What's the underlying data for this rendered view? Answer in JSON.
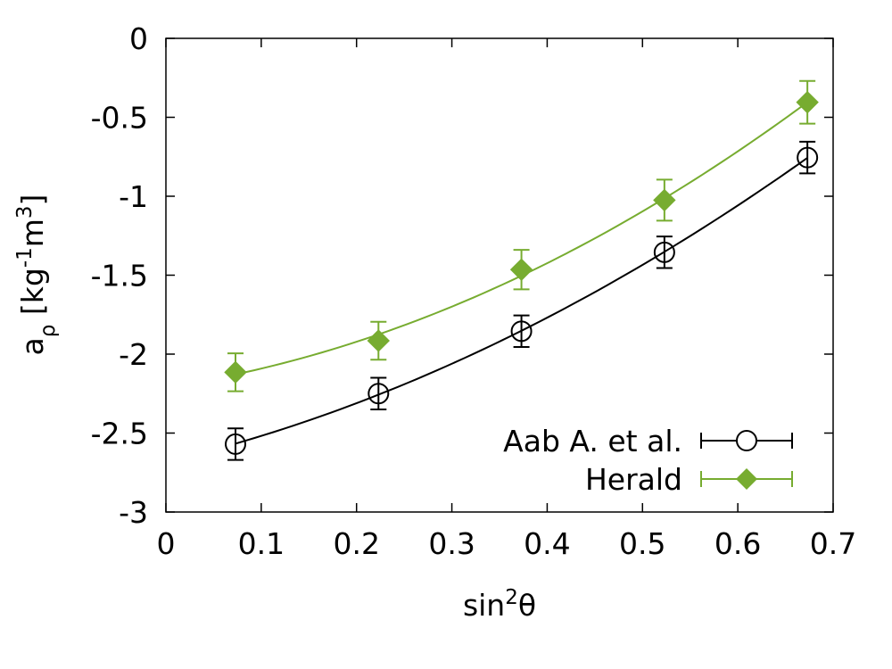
{
  "chart_data": {
    "type": "scatter",
    "title": "",
    "xlabel": {
      "base": "sin",
      "sup": "2",
      "tail": "θ"
    },
    "ylabel": {
      "base": "a",
      "sub": "ρ",
      "unit_open": " [kg",
      "sup1": "-1",
      "unit_mid": "m",
      "sup2": "3",
      "unit_close": "]"
    },
    "xlim": [
      0,
      0.7
    ],
    "ylim": [
      -3,
      0
    ],
    "xticks": [
      0,
      0.1,
      0.2,
      0.3,
      0.4,
      0.5,
      0.6,
      0.7
    ],
    "xtick_labels": [
      "0",
      "0.1",
      "0.2",
      "0.3",
      "0.4",
      "0.5",
      "0.6",
      "0.7"
    ],
    "yticks": [
      0,
      -0.5,
      -1,
      -1.5,
      -2,
      -2.5,
      -3
    ],
    "ytick_labels": [
      "0",
      "-0.5",
      "-1",
      "-1.5",
      "-2",
      "-2.5",
      "-3"
    ],
    "grid": false,
    "legend_position": "bottom-right",
    "series": [
      {
        "name": "Aab A. et al.",
        "marker": "open-circle",
        "color": "#000000",
        "x": [
          0.073,
          0.223,
          0.373,
          0.523,
          0.673
        ],
        "y": [
          -2.57,
          -2.25,
          -1.855,
          -1.355,
          -0.755
        ],
        "err": [
          0.1,
          0.1,
          0.1,
          0.1,
          0.1
        ]
      },
      {
        "name": "Herald",
        "marker": "filled-diamond",
        "color": "#77ac30",
        "x": [
          0.073,
          0.223,
          0.373,
          0.523,
          0.673
        ],
        "y": [
          -2.115,
          -1.915,
          -1.465,
          -1.025,
          -0.405
        ],
        "err": [
          0.12,
          0.12,
          0.125,
          0.13,
          0.135
        ]
      }
    ]
  }
}
